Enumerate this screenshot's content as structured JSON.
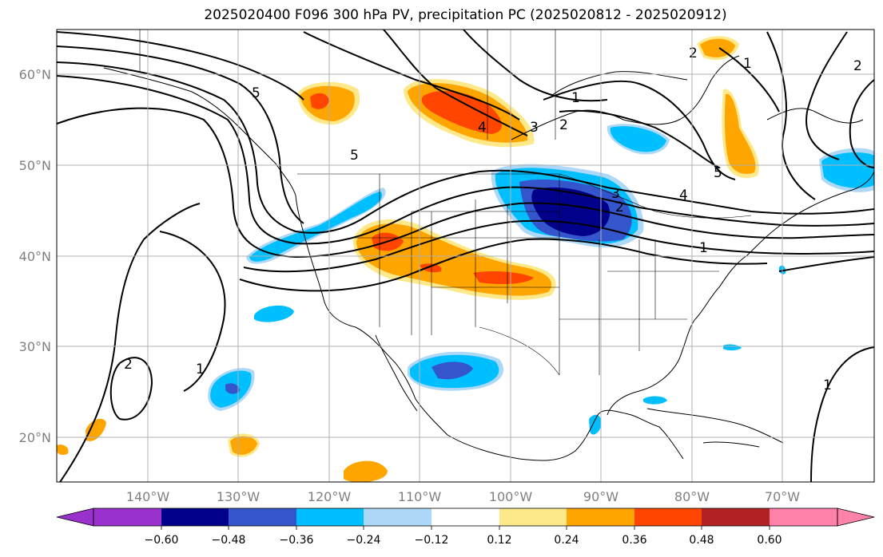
{
  "title": "2025020400 F096 300 hPa PV, precipitation PC (2025020812 - 2025020912)",
  "map": {
    "lat_labels": [
      "60°N",
      "50°N",
      "40°N",
      "30°N",
      "20°N"
    ],
    "lon_labels": [
      "140°W",
      "130°W",
      "120°W",
      "110°W",
      "100°W",
      "90°W",
      "80°W",
      "70°W"
    ],
    "pv_contour_labels": [
      "5",
      "5",
      "4",
      "3",
      "2",
      "1",
      "2",
      "1",
      "1",
      "2",
      "5",
      "4",
      "3",
      "2",
      "1",
      "2",
      "1"
    ]
  },
  "colorbar": {
    "ticks": [
      "−0.60",
      "−0.48",
      "−0.36",
      "−0.24",
      "−0.12",
      "0.12",
      "0.24",
      "0.36",
      "0.48",
      "0.60"
    ],
    "colors": [
      "#9932cc",
      "#00008b",
      "#3455cc",
      "#00bfff",
      "#add8f7",
      "#ffffff",
      "#fde98a",
      "#ffa500",
      "#ff4500",
      "#b22222",
      "#ff82ab"
    ]
  },
  "colors": {
    "neg_strong": "#00008b",
    "neg_mid": "#3455cc",
    "neg_light": "#00bfff",
    "neg_faint": "#add8f7",
    "pos_faint": "#fde98a",
    "pos_light": "#ffa500",
    "pos_mid": "#ff4500",
    "grid": "#b0b0b0"
  }
}
